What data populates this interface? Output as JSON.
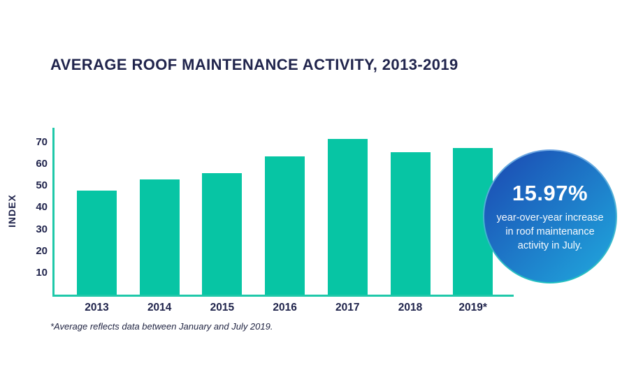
{
  "title": "AVERAGE ROOF MAINTENANCE ACTIVITY, 2013-2019",
  "chart_data": {
    "type": "bar",
    "title": "AVERAGE ROOF MAINTENANCE ACTIVITY, 2013-2019",
    "categories": [
      "2013",
      "2014",
      "2015",
      "2016",
      "2017",
      "2018",
      "2019*"
    ],
    "values": [
      48,
      53,
      56,
      63.5,
      71.5,
      65.5,
      67.5
    ],
    "xlabel": "",
    "ylabel": "INDEX",
    "ylim": [
      0,
      75
    ],
    "yticks": [
      10,
      20,
      30,
      40,
      50,
      60,
      70
    ],
    "grid": false,
    "legend": false,
    "bar_color": "#07C5A4",
    "axis_color": "#1FC8A9"
  },
  "badge": {
    "headline": "15.97%",
    "line1": "year-over-year increase",
    "line2": "in roof maintenance",
    "line3": "activity in July.",
    "gradient_start": "#1B47B1",
    "gradient_end": "#1F96D5"
  },
  "footnote": "*Average reflects data between January and July 2019."
}
